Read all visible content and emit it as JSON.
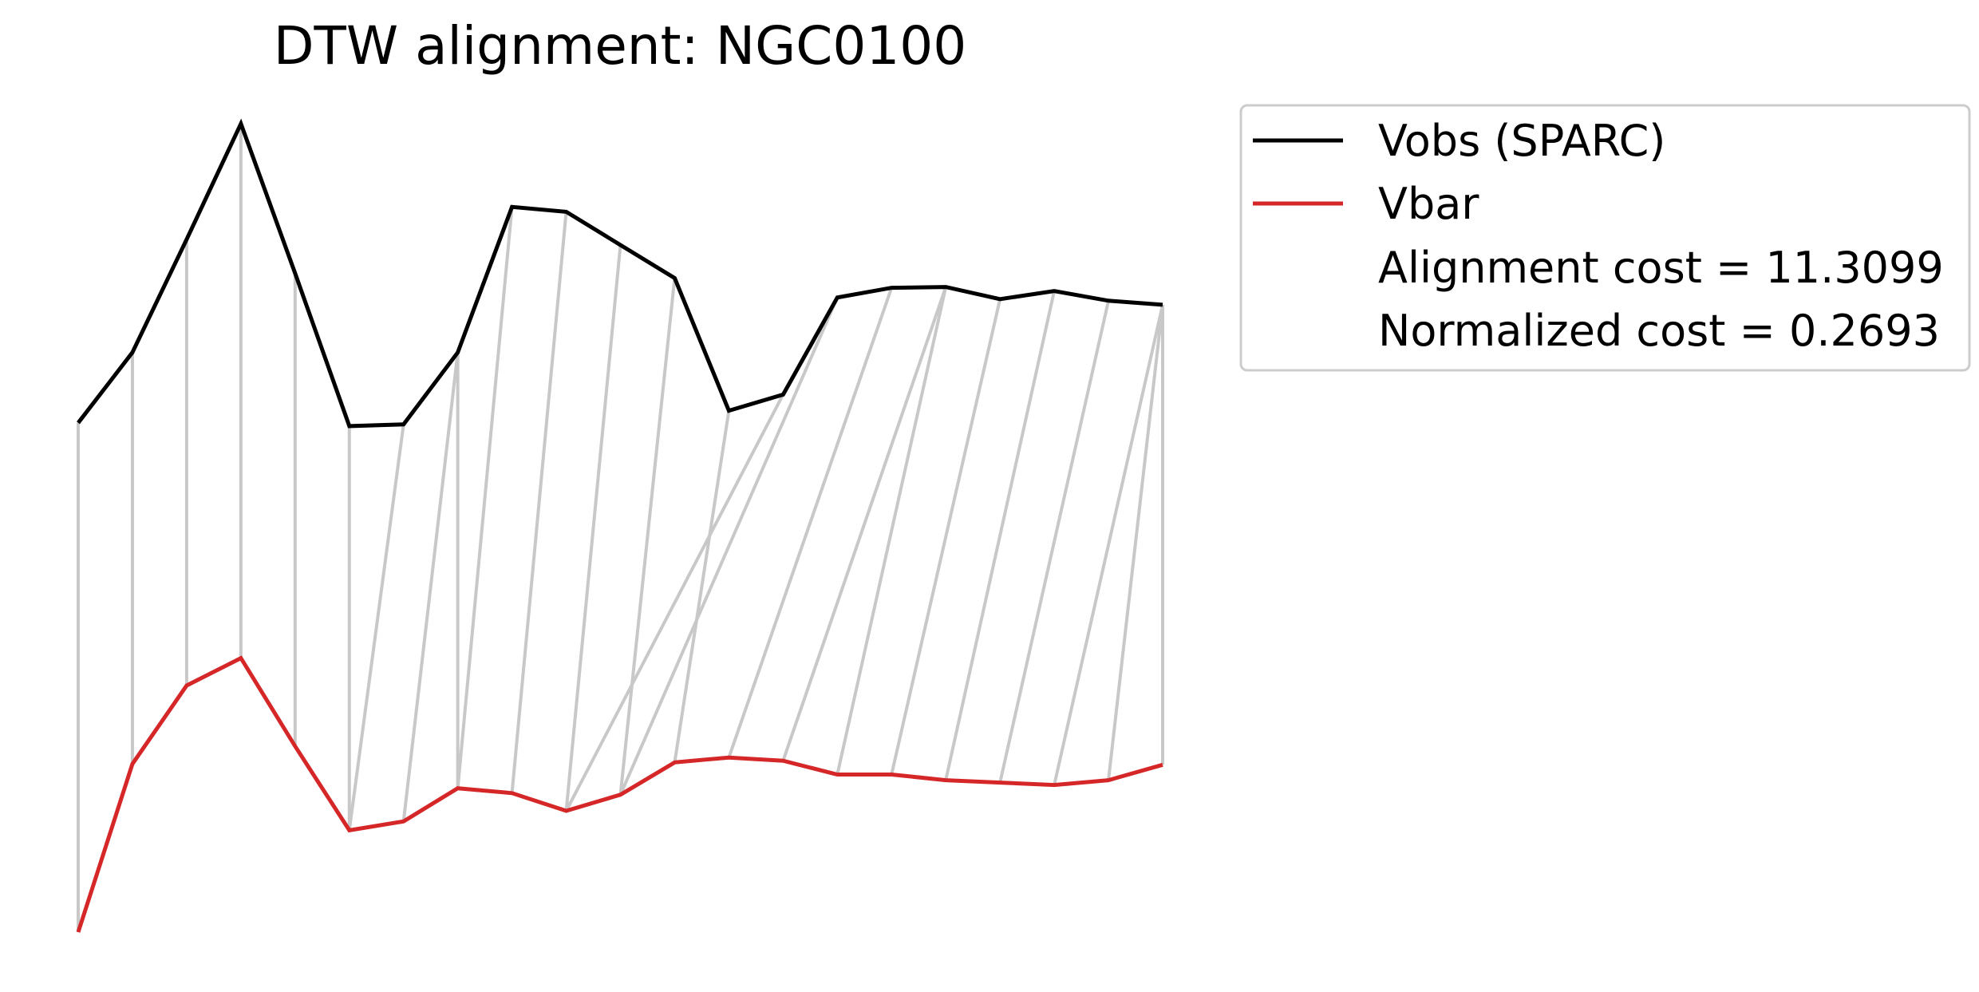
{
  "chart_data": {
    "type": "line",
    "title": "DTW alignment: NGC0100",
    "xlabel": "",
    "ylabel": "",
    "axes_visible": false,
    "grid": false,
    "legend_position": "outside-top-right",
    "x": [
      0,
      1,
      2,
      3,
      4,
      5,
      6,
      7,
      8,
      9,
      10,
      11,
      12,
      13,
      14,
      15,
      16,
      17,
      18,
      19,
      20
    ],
    "series": [
      {
        "name": "Vobs (SPARC)",
        "color": "#000000",
        "values": [
          0.63,
          0.717,
          0.857,
          1.0,
          0.815,
          0.626,
          0.628,
          0.717,
          0.897,
          0.891,
          0.85,
          0.809,
          0.645,
          0.665,
          0.785,
          0.797,
          0.798,
          0.783,
          0.793,
          0.781,
          0.776
        ]
      },
      {
        "name": "Vbar",
        "color": "#d62728",
        "values": [
          0.0,
          0.208,
          0.305,
          0.339,
          0.23,
          0.126,
          0.137,
          0.178,
          0.172,
          0.15,
          0.17,
          0.21,
          0.216,
          0.212,
          0.195,
          0.195,
          0.188,
          0.185,
          0.182,
          0.188,
          0.207
        ]
      }
    ],
    "alignment": {
      "name": "DTW warping path",
      "color": "#c8c8c8",
      "pairs": [
        [
          0,
          0
        ],
        [
          1,
          1
        ],
        [
          2,
          2
        ],
        [
          3,
          3
        ],
        [
          4,
          4
        ],
        [
          5,
          5
        ],
        [
          6,
          5
        ],
        [
          7,
          6
        ],
        [
          7,
          7
        ],
        [
          8,
          7
        ],
        [
          9,
          8
        ],
        [
          10,
          9
        ],
        [
          11,
          10
        ],
        [
          12,
          11
        ],
        [
          13,
          9
        ],
        [
          14,
          10
        ],
        [
          15,
          12
        ],
        [
          16,
          13
        ],
        [
          16,
          14
        ],
        [
          17,
          15
        ],
        [
          18,
          16
        ],
        [
          19,
          17
        ],
        [
          20,
          18
        ],
        [
          20,
          19
        ],
        [
          20,
          20
        ]
      ]
    },
    "annotations": [
      "Alignment cost = 11.3099",
      "Normalized cost = 0.2693"
    ]
  }
}
